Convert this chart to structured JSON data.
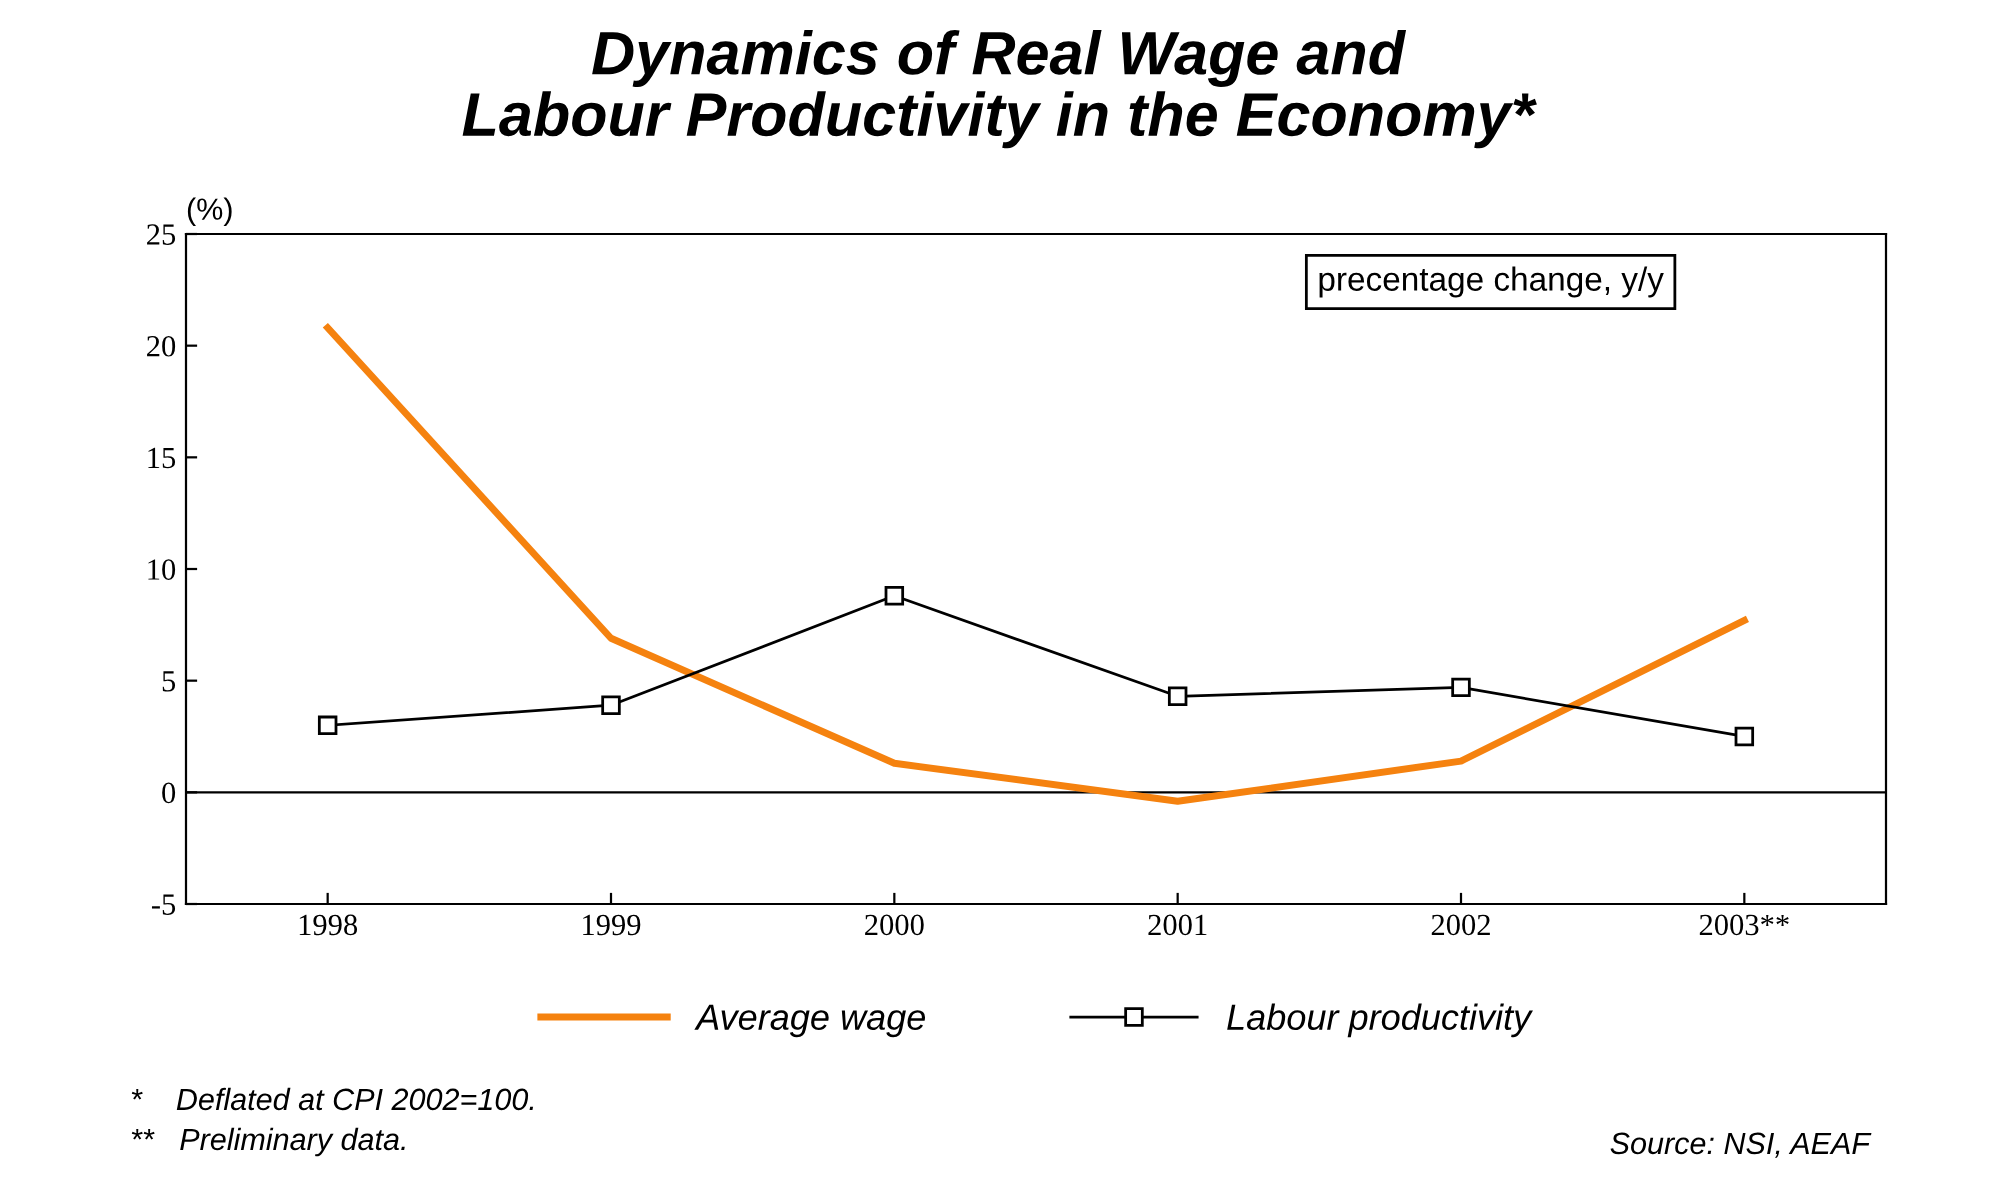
{
  "chart_data": {
    "type": "line",
    "title": "Dynamics of Real Wage and\nLabour Productivity in the Economy*",
    "categories": [
      "1998",
      "1999",
      "2000",
      "2001",
      "2002",
      "2003**"
    ],
    "series": [
      {
        "name": "Average wage",
        "color": "#f5820f",
        "values": [
          20.8,
          6.9,
          1.3,
          -0.4,
          1.4,
          7.7
        ],
        "marker": "none"
      },
      {
        "name": "Labour productivity",
        "color": "#000000",
        "values": [
          3.0,
          3.9,
          8.8,
          4.3,
          4.7,
          2.5
        ],
        "marker": "square"
      }
    ],
    "ylim": [
      -5,
      25
    ],
    "yticks": [
      -5,
      0,
      5,
      10,
      15,
      20,
      25
    ],
    "ref_lines": [
      {
        "axis": "y",
        "value": 0,
        "color": "#000000"
      }
    ],
    "grid": false,
    "legend": "bottom",
    "annotations": [
      "(%)",
      "precentage change, y/y",
      "*    Deflated at CPI 2002=100.",
      "**   Preliminary data.",
      "Source: NSI, AEAF"
    ]
  }
}
